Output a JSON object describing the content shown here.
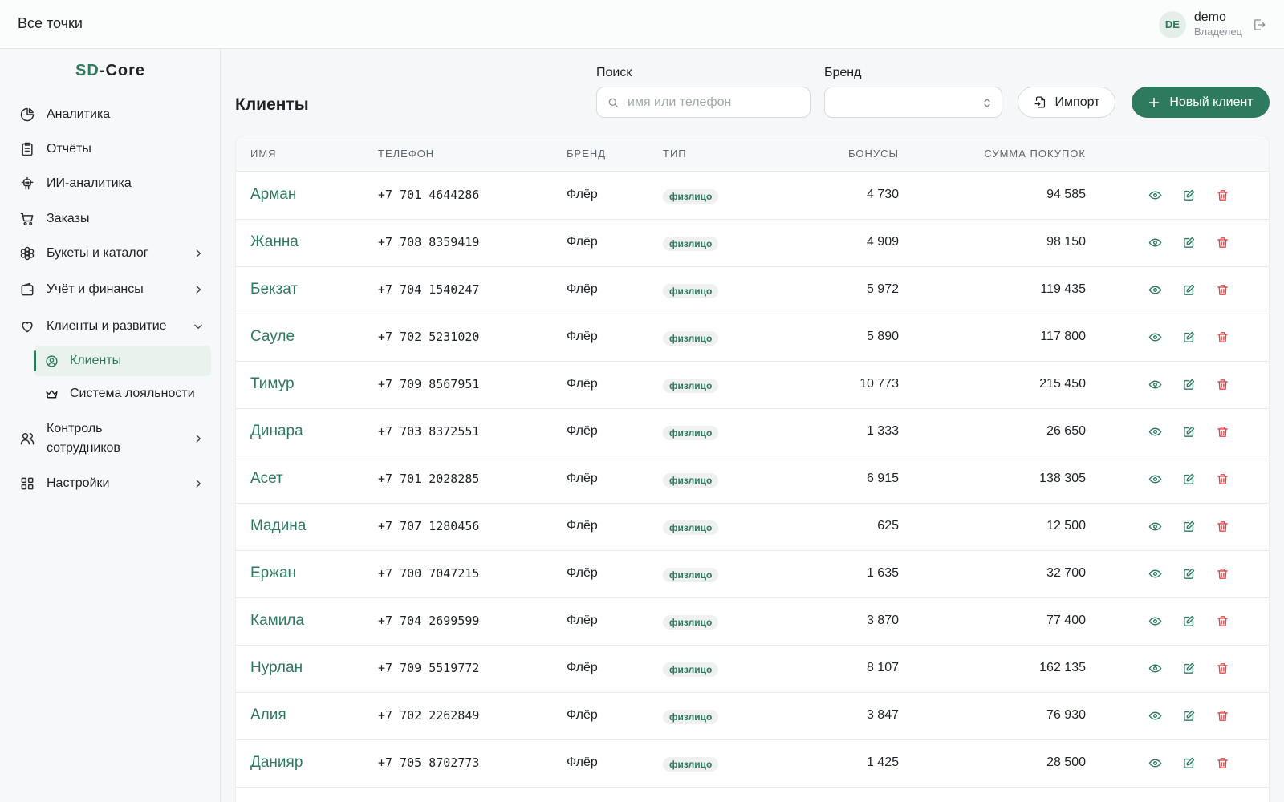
{
  "topbar": {
    "scope_label": "Все точки",
    "user": {
      "initials": "DE",
      "name": "demo",
      "role": "Владелец"
    }
  },
  "sidebar": {
    "logo_part1": "SD",
    "logo_part2": "-Core",
    "items": [
      {
        "label": "Аналитика",
        "icon": "analytics-icon"
      },
      {
        "label": "Отчёты",
        "icon": "reports-icon"
      },
      {
        "label": "ИИ-аналитика",
        "icon": "ai-icon"
      },
      {
        "label": "Заказы",
        "icon": "cart-icon"
      },
      {
        "label": "Букеты и каталог",
        "icon": "flower-icon"
      },
      {
        "label": "Учёт и финансы",
        "icon": "wallet-icon"
      },
      {
        "label": "Клиенты и развитие",
        "icon": "heart-icon"
      },
      {
        "label": "Контроль сотрудников",
        "icon": "users-icon"
      },
      {
        "label": "Настройки",
        "icon": "grid-icon"
      }
    ],
    "sub_items": [
      {
        "label": "Клиенты",
        "icon": "user-circle-icon",
        "active": true
      },
      {
        "label": "Система лояльности",
        "icon": "crown-icon",
        "active": false
      }
    ]
  },
  "main": {
    "title": "Клиенты",
    "search": {
      "label": "Поиск",
      "placeholder": "имя или телефон",
      "value": ""
    },
    "brand_filter": {
      "label": "Бренд",
      "value": ""
    },
    "import_label": "Импорт",
    "new_client_label": "Новый клиент",
    "accent_color": "#2e7a5e",
    "danger_color": "#e0484a"
  },
  "table": {
    "headers": [
      "Имя",
      "Телефон",
      "Бренд",
      "Тип",
      "Бонусы",
      "Сумма покупок"
    ],
    "rows": [
      {
        "name": "Арман",
        "phone": "+7 701 4644286",
        "brand": "Флёр",
        "type": "физлицо",
        "bonus": "4 730",
        "sum": "94 585"
      },
      {
        "name": "Жанна",
        "phone": "+7 708 8359419",
        "brand": "Флёр",
        "type": "физлицо",
        "bonus": "4 909",
        "sum": "98 150"
      },
      {
        "name": "Бекзат",
        "phone": "+7 704 1540247",
        "brand": "Флёр",
        "type": "физлицо",
        "bonus": "5 972",
        "sum": "119 435"
      },
      {
        "name": "Сауле",
        "phone": "+7 702 5231020",
        "brand": "Флёр",
        "type": "физлицо",
        "bonus": "5 890",
        "sum": "117 800"
      },
      {
        "name": "Тимур",
        "phone": "+7 709 8567951",
        "brand": "Флёр",
        "type": "физлицо",
        "bonus": "10 773",
        "sum": "215 450"
      },
      {
        "name": "Динара",
        "phone": "+7 703 8372551",
        "brand": "Флёр",
        "type": "физлицо",
        "bonus": "1 333",
        "sum": "26 650"
      },
      {
        "name": "Асет",
        "phone": "+7 701 2028285",
        "brand": "Флёр",
        "type": "физлицо",
        "bonus": "6 915",
        "sum": "138 305"
      },
      {
        "name": "Мадина",
        "phone": "+7 707 1280456",
        "brand": "Флёр",
        "type": "физлицо",
        "bonus": "625",
        "sum": "12 500"
      },
      {
        "name": "Ержан",
        "phone": "+7 700 7047215",
        "brand": "Флёр",
        "type": "физлицо",
        "bonus": "1 635",
        "sum": "32 700"
      },
      {
        "name": "Камила",
        "phone": "+7 704 2699599",
        "brand": "Флёр",
        "type": "физлицо",
        "bonus": "3 870",
        "sum": "77 400"
      },
      {
        "name": "Нурлан",
        "phone": "+7 709 5519772",
        "brand": "Флёр",
        "type": "физлицо",
        "bonus": "8 107",
        "sum": "162 135"
      },
      {
        "name": "Алия",
        "phone": "+7 702 2262849",
        "brand": "Флёр",
        "type": "физлицо",
        "bonus": "3 847",
        "sum": "76 930"
      },
      {
        "name": "Данияр",
        "phone": "+7 705 8702773",
        "brand": "Флёр",
        "type": "физлицо",
        "bonus": "1 425",
        "sum": "28 500"
      }
    ]
  }
}
